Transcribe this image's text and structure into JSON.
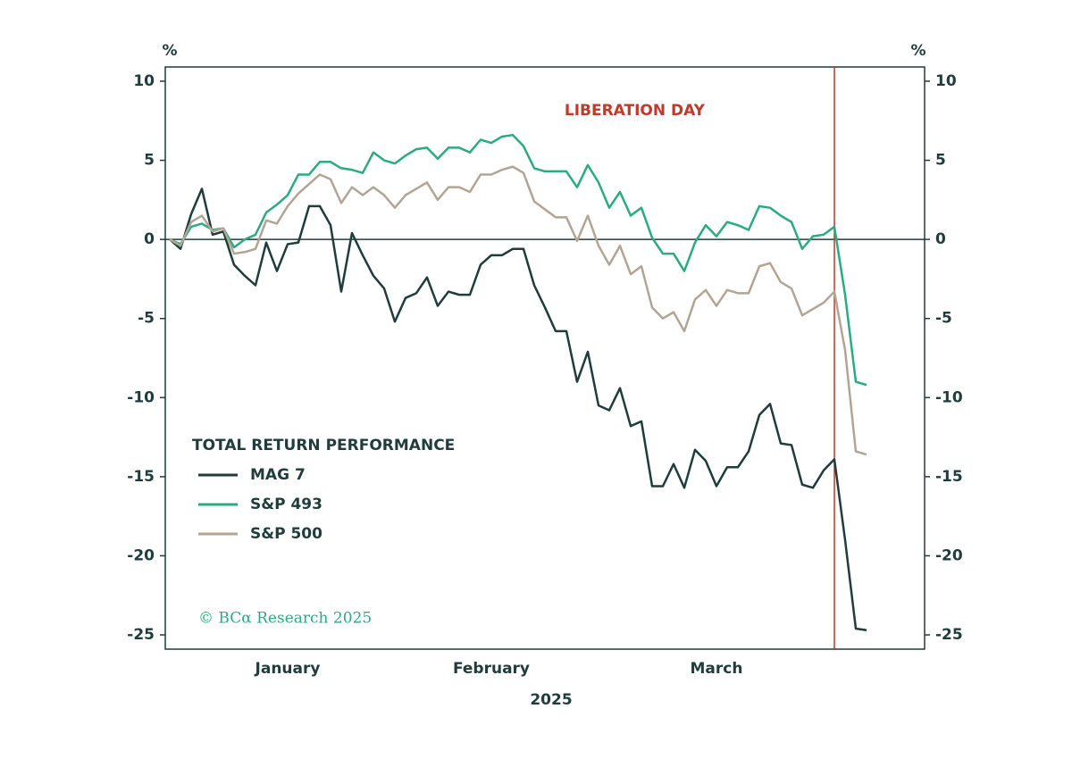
{
  "chart_data": {
    "type": "line",
    "y_unit": "%",
    "x_label": "2025",
    "legend_title": "TOTAL RETURN PERFORMANCE",
    "source": "© BCα Research 2025",
    "categories": [
      null,
      null,
      null,
      null,
      null,
      null,
      null,
      null,
      null,
      null,
      null,
      "January",
      null,
      null,
      null,
      null,
      null,
      null,
      null,
      null,
      null,
      null,
      null,
      null,
      null,
      null,
      null,
      null,
      null,
      null,
      "February",
      null,
      null,
      null,
      null,
      null,
      null,
      null,
      null,
      null,
      null,
      null,
      null,
      null,
      null,
      null,
      null,
      null,
      null,
      null,
      null,
      "March",
      null,
      null,
      null,
      null,
      null,
      null,
      null,
      null,
      null,
      null,
      null,
      null,
      null,
      null
    ],
    "series": [
      {
        "name": "MAG 7",
        "color": "#1f3d3a",
        "values": [
          0,
          -0.6,
          1.6,
          3.2,
          0.3,
          0.5,
          -1.6,
          -2.3,
          -2.9,
          -0.2,
          -2.0,
          -0.3,
          -0.2,
          2.1,
          2.1,
          0.9,
          -3.3,
          0.4,
          -1.0,
          -2.3,
          -3.1,
          -5.2,
          -3.7,
          -3.4,
          -2.4,
          -4.2,
          -3.3,
          -3.5,
          -3.5,
          -1.6,
          -1.0,
          -1.0,
          -0.6,
          -0.6,
          -2.9,
          -4.3,
          -5.8,
          -5.8,
          -9.0,
          -7.1,
          -10.5,
          -10.8,
          -9.4,
          -11.8,
          -11.5,
          -15.6,
          -15.6,
          -14.2,
          -15.7,
          -13.3,
          -14.0,
          -15.6,
          -14.4,
          -14.4,
          -13.4,
          -11.1,
          -10.4,
          -12.9,
          -13.0,
          -15.5,
          -15.7,
          -14.6,
          -13.9,
          -19.0,
          -24.6,
          -24.7
        ]
      },
      {
        "name": "S&P 493",
        "color": "#2bab80",
        "values": [
          0,
          -0.3,
          0.8,
          1.0,
          0.6,
          0.7,
          -0.5,
          0.0,
          0.3,
          1.7,
          2.2,
          2.8,
          4.1,
          4.1,
          4.9,
          4.9,
          4.5,
          4.4,
          4.2,
          5.5,
          5.0,
          4.8,
          5.3,
          5.7,
          5.8,
          5.1,
          5.8,
          5.8,
          5.5,
          6.3,
          6.1,
          6.5,
          6.6,
          5.9,
          4.5,
          4.3,
          4.3,
          4.3,
          3.3,
          4.7,
          3.6,
          2.0,
          3.0,
          1.5,
          2.0,
          0.1,
          -0.9,
          -0.9,
          -2.0,
          -0.2,
          0.9,
          0.2,
          1.1,
          0.9,
          0.6,
          2.1,
          2.0,
          1.5,
          1.1,
          -0.6,
          0.2,
          0.3,
          0.8,
          -3.5,
          -9.0,
          -9.2
        ]
      },
      {
        "name": "S&P 500",
        "color": "#b3a595",
        "values": [
          0,
          -0.4,
          1.1,
          1.5,
          0.5,
          0.7,
          -0.9,
          -0.8,
          -0.6,
          1.2,
          1.0,
          2.1,
          2.9,
          3.5,
          4.1,
          3.8,
          2.3,
          3.3,
          2.8,
          3.3,
          2.8,
          2.0,
          2.8,
          3.2,
          3.6,
          2.5,
          3.3,
          3.3,
          3.0,
          4.1,
          4.1,
          4.4,
          4.6,
          4.2,
          2.4,
          1.9,
          1.4,
          1.4,
          -0.1,
          1.5,
          -0.4,
          -1.6,
          -0.4,
          -2.2,
          -1.7,
          -4.3,
          -5.0,
          -4.6,
          -5.8,
          -3.8,
          -3.2,
          -4.2,
          -3.2,
          -3.4,
          -3.4,
          -1.7,
          -1.5,
          -2.7,
          -3.1,
          -4.8,
          -4.4,
          -4.0,
          -3.3,
          -7.0,
          -13.4,
          -13.6
        ]
      }
    ],
    "annotations": [
      {
        "text": "LIBERATION DAY",
        "x": 62,
        "color": "#c0392b"
      }
    ],
    "ylim": [
      -25.9,
      10.9
    ],
    "yticks": [
      -25,
      -20,
      -15,
      -10,
      -5,
      0,
      5,
      10
    ]
  }
}
